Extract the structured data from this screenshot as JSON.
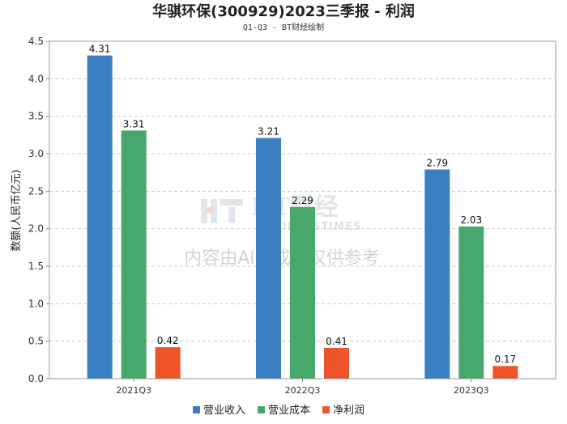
{
  "chart_data": {
    "type": "bar",
    "title": "华骐环保(300929)2023三季报 - 利润",
    "subtitle": "Q1-Q3 - BT财经绘制",
    "ylabel": "数额(人民币亿元)",
    "xlabel": "",
    "ylim": [
      0,
      4.5
    ],
    "yticks": [
      "0.0",
      "0.5",
      "1.0",
      "1.5",
      "2.0",
      "2.5",
      "3.0",
      "3.5",
      "4.0",
      "4.5"
    ],
    "categories": [
      "2021Q3",
      "2022Q3",
      "2023Q3"
    ],
    "series": [
      {
        "name": "营业收入",
        "color": "#3a7fc1",
        "values": [
          4.31,
          3.21,
          2.79
        ],
        "labels": [
          "4.31",
          "3.21",
          "2.79"
        ]
      },
      {
        "name": "营业成本",
        "color": "#46a86c",
        "values": [
          3.31,
          2.29,
          2.03
        ],
        "labels": [
          "3.31",
          "2.29",
          "2.03"
        ]
      },
      {
        "name": "净利润",
        "color": "#f0542a",
        "values": [
          0.42,
          0.41,
          0.17
        ],
        "labels": [
          "0.42",
          "0.41",
          "0.17"
        ]
      }
    ],
    "legend_position": "bottom",
    "grid": true
  },
  "watermark": {
    "logo_text": "BT财经",
    "logo_sub": "BUSINESSTIMES",
    "notice": "内容由AI生成，仅供参考"
  }
}
